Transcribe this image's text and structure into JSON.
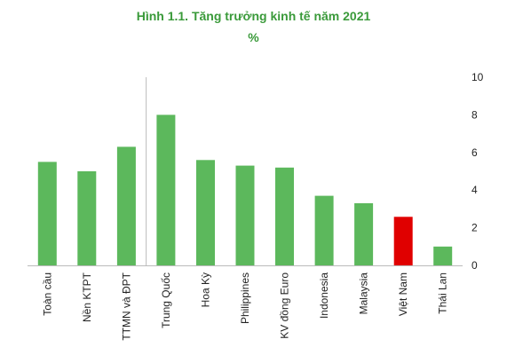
{
  "colors": {
    "title": "#3a9a3a",
    "bar": "#5cb85c",
    "highlight": "#e00000",
    "axis": "#bbbbbb",
    "text": "#222222"
  },
  "chart_data": {
    "type": "bar",
    "title": "Hình 1.1. Tăng trưởng kinh tế năm 2021",
    "subtitle": "%",
    "xlabel": "",
    "ylabel": "",
    "categories": [
      "Toàn cầu",
      "Nền KTPT",
      "TTMN và ĐPT",
      "Trung Quốc",
      "Hoa Kỳ",
      "Philippines",
      "KV đồng Euro",
      "Indonesia",
      "Malaysia",
      "Việt Nam",
      "Thái Lan"
    ],
    "values": [
      5.5,
      5.0,
      6.3,
      8.0,
      5.6,
      5.3,
      5.2,
      3.7,
      3.3,
      2.58,
      1.0
    ],
    "highlight": "Việt Nam",
    "ylim": [
      0,
      10
    ],
    "yticks": [
      0,
      2,
      4,
      6,
      8,
      10
    ],
    "y_axis_position": "right",
    "grid": false,
    "legend": "none"
  }
}
